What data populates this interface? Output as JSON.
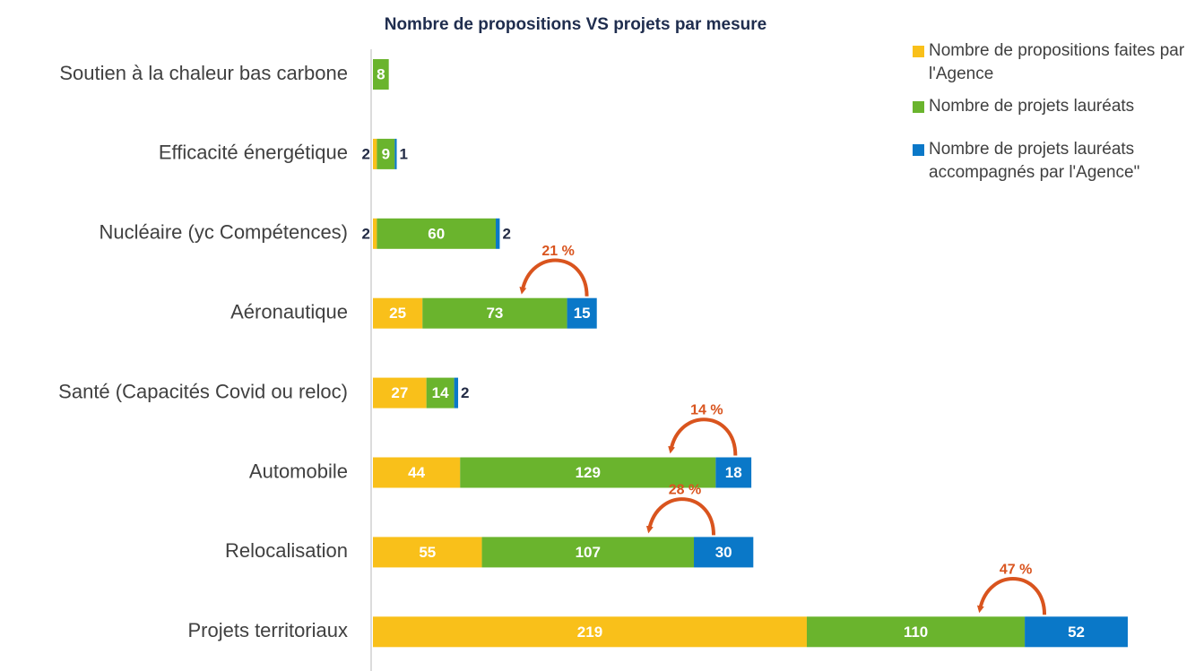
{
  "chart_data": {
    "type": "stacked-barh",
    "title": "Nombre de propositions VS projets par mesure",
    "categories": [
      "Soutien à la chaleur bas carbone",
      "Efficacité énergétique",
      "Nucléaire (yc Compétences)",
      "Aéronautique",
      "Santé (Capacités Covid ou reloc)",
      "Automobile",
      "Relocalisation",
      "Projets territoriaux"
    ],
    "series": [
      {
        "name": "Nombre de propositions faites par l'Agence",
        "color": "#f9c01a",
        "values": [
          null,
          2,
          2,
          25,
          27,
          44,
          55,
          219
        ]
      },
      {
        "name": "Nombre de projets lauréats",
        "color": "#6ab42d",
        "values": [
          8,
          9,
          60,
          73,
          14,
          129,
          107,
          110
        ]
      },
      {
        "name": "Nombre de projets lauréats accompagnés par l'Agence\"",
        "color": "#0a78c8",
        "values": [
          null,
          1,
          2,
          15,
          2,
          18,
          30,
          52
        ]
      }
    ],
    "annotations": [
      "21 %",
      "14 %",
      "28 %",
      "47 %"
    ],
    "legend": "top-right"
  }
}
